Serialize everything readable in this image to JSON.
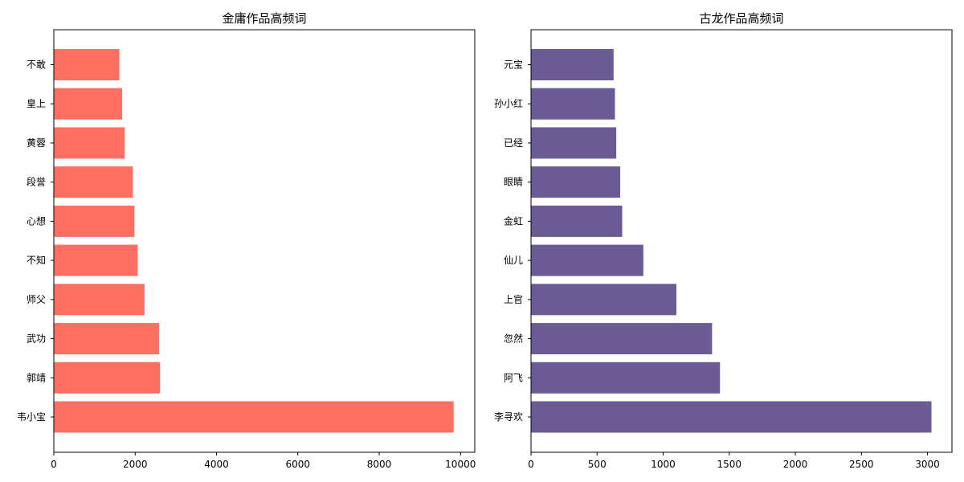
{
  "chart_data": [
    {
      "type": "bar",
      "orientation": "horizontal",
      "title": "金庸作品高频词",
      "categories": [
        "韦小宝",
        "郭靖",
        "武功",
        "师父",
        "不知",
        "心想",
        "段誉",
        "黄蓉",
        "皇上",
        "不敢"
      ],
      "values": [
        9830,
        2610,
        2590,
        2230,
        2060,
        1980,
        1940,
        1740,
        1680,
        1610
      ],
      "xlim": [
        0,
        10350
      ],
      "xticks": [
        0,
        2000,
        4000,
        6000,
        8000,
        10000
      ],
      "xlabel": "",
      "ylabel": "",
      "grid": false,
      "color": "#ff6f61"
    },
    {
      "type": "bar",
      "orientation": "horizontal",
      "title": "古龙作品高频词",
      "categories": [
        "李寻欢",
        "阿飞",
        "忽然",
        "上官",
        "仙儿",
        "金虹",
        "眼睛",
        "已经",
        "孙小红",
        "元宝"
      ],
      "values": [
        3030,
        1430,
        1370,
        1100,
        850,
        690,
        675,
        645,
        635,
        625
      ],
      "xlim": [
        0,
        3185
      ],
      "xticks": [
        0,
        500,
        1000,
        1500,
        2000,
        2500,
        3000
      ],
      "xlabel": "",
      "ylabel": "",
      "grid": false,
      "color": "#6b5b95"
    }
  ]
}
